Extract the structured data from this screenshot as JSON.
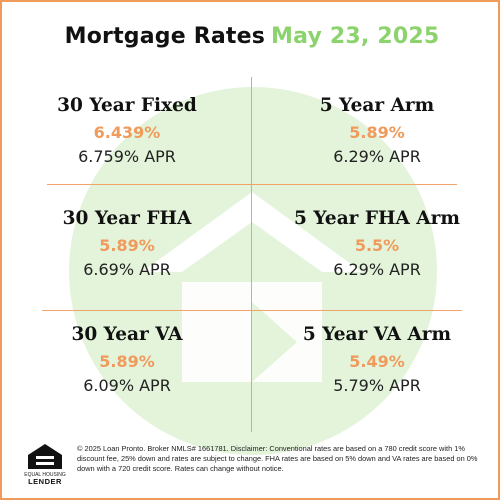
{
  "header": {
    "title": "Mortgage Rates",
    "date": "May 23, 2025"
  },
  "rates": [
    {
      "name": "30 Year Fixed",
      "rate": "6.439%",
      "apr": "6.759% APR"
    },
    {
      "name": "5 Year Arm",
      "rate": "5.89%",
      "apr": "6.29% APR"
    },
    {
      "name": "30 Year FHA",
      "rate": "5.89%",
      "apr": "6.69% APR"
    },
    {
      "name": "5 Year FHA Arm",
      "rate": "5.5%",
      "apr": "6.29% APR"
    },
    {
      "name": "30 Year VA",
      "rate": "5.89%",
      "apr": "6.09% APR"
    },
    {
      "name": "5 Year VA Arm",
      "rate": "5.49%",
      "apr": "5.79% APR"
    }
  ],
  "logo": {
    "caption": "EQUAL HOUSING",
    "label": "LENDER",
    "icon": "equal-housing-lender-icon"
  },
  "disclaimer": "© 2025 Loan Pronto. Broker NMLS# 1661781. Disclaimer: Conventional rates are based on a 780 credit score with 1% discount fee, 25% down and rates are subject to change. FHA rates are based on 5% down and VA rates are based on 0% down with a 720 credit score. Rates can change without notice.",
  "colors": {
    "accent_orange": "#f09a5b",
    "accent_green": "#8cd36e",
    "background_mark": "#e3f4da"
  }
}
